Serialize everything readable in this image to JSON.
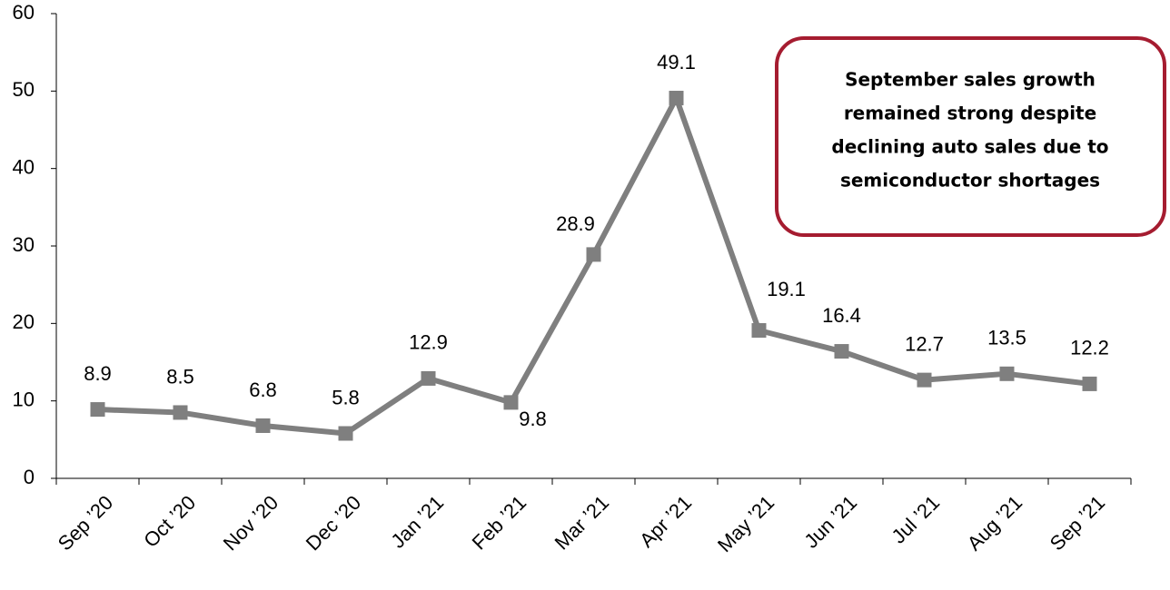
{
  "chart_data": {
    "type": "line",
    "categories": [
      "Sep ’20",
      "Oct ’20",
      "Nov ’20",
      "Dec ’20",
      "Jan ’21",
      "Feb ’21",
      "Mar ’21",
      "Apr ’21",
      "May ’21",
      "Jun ’21",
      "Jul ’21",
      "Aug ’21",
      "Sep ’21"
    ],
    "values": [
      8.9,
      8.5,
      6.8,
      5.8,
      12.9,
      9.8,
      28.9,
      49.1,
      19.1,
      16.4,
      12.7,
      13.5,
      12.2
    ],
    "color": "#7f7f7f",
    "ylim": [
      0,
      60
    ],
    "yticks": [
      0,
      10,
      20,
      30,
      40,
      50,
      60
    ],
    "annotation": [
      "September sales growth",
      "remained strong despite",
      "declining auto sales due to",
      "semiconductor shortages"
    ],
    "annotation_color": "#a51c30"
  }
}
